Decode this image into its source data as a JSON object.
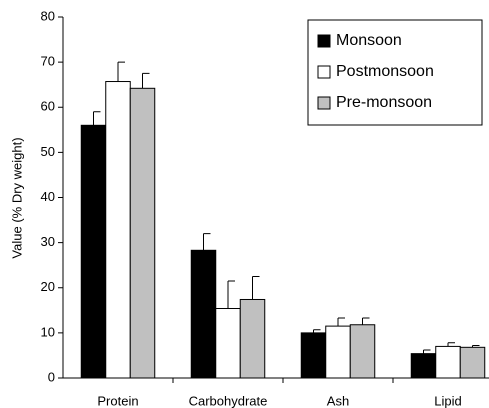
{
  "chart_data": {
    "type": "bar",
    "y_label": "Value (% Dry weight)",
    "categories": [
      "Protein",
      "Carbohydrate",
      "Ash",
      "Lipid"
    ],
    "series": [
      {
        "name": "Monsoon",
        "color": "#000000",
        "values": [
          56,
          28.3,
          10,
          5.4
        ],
        "errors": [
          3,
          3.7,
          0.7,
          0.8
        ]
      },
      {
        "name": "Postmonsoon",
        "color": "#ffffff",
        "values": [
          65.7,
          15.4,
          11.5,
          7
        ],
        "errors": [
          4.3,
          6.1,
          1.8,
          0.8
        ]
      },
      {
        "name": "Pre-monsoon",
        "color": "#c0c0c0",
        "values": [
          64.2,
          17.4,
          11.8,
          6.8
        ],
        "errors": [
          3.3,
          5.1,
          1.5,
          0.4
        ]
      }
    ],
    "ylim": [
      0,
      80
    ],
    "yticks": [
      0,
      10,
      20,
      30,
      40,
      50,
      60,
      70,
      80
    ],
    "legend": "upper right",
    "grid": false
  }
}
